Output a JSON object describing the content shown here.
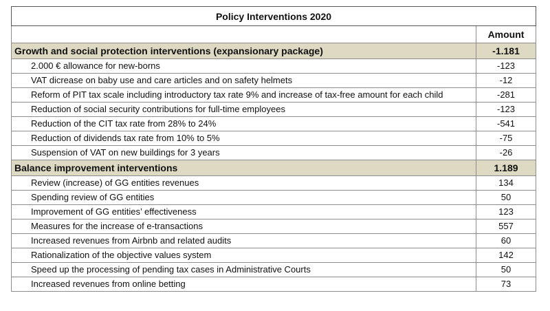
{
  "table": {
    "title": "Policy Interventions 2020",
    "amount_header": "Amount",
    "sections": [
      {
        "label": "Growth and social protection interventions (expansionary package)",
        "amount": "-1.181",
        "rows": [
          {
            "label": "2.000 € allowance for new-borns",
            "amount": "-123"
          },
          {
            "label": "VAT dicrease on baby use and care articles and on safety helmets",
            "amount": "-12"
          },
          {
            "label": "Reform of PIT tax scale including introductory tax rate 9% and increase of tax-free amount for each child",
            "amount": "-281"
          },
          {
            "label": "Reduction of social security contributions for full-time employees",
            "amount": "-123"
          },
          {
            "label": "Reduction of the CIT tax rate from 28% to 24%",
            "amount": "-541"
          },
          {
            "label": "Reduction of dividends tax rate from 10% to 5%",
            "amount": "-75"
          },
          {
            "label": "Suspension of VAT on new buildings for 3 years",
            "amount": "-26"
          }
        ]
      },
      {
        "label": "Balance improvement interventions",
        "amount": "1.189",
        "rows": [
          {
            "label": "Review (increase) of GG entities revenues",
            "amount": "134"
          },
          {
            "label": "Spending review of GG entities",
            "amount": "50"
          },
          {
            "label": "Improvement of GG entities’ effectiveness",
            "amount": "123"
          },
          {
            "label": "Measures for the increase of e-transactions",
            "amount": "557"
          },
          {
            "label": "Increased revenues from Airbnb and related audits",
            "amount": "60"
          },
          {
            "label": "Rationalization of the objective values system",
            "amount": "142"
          },
          {
            "label": "Speed up the processing of pending tax cases in Administrative Courts",
            "amount": "50"
          },
          {
            "label": "Increased revenues from online betting",
            "amount": "73"
          }
        ]
      }
    ]
  }
}
